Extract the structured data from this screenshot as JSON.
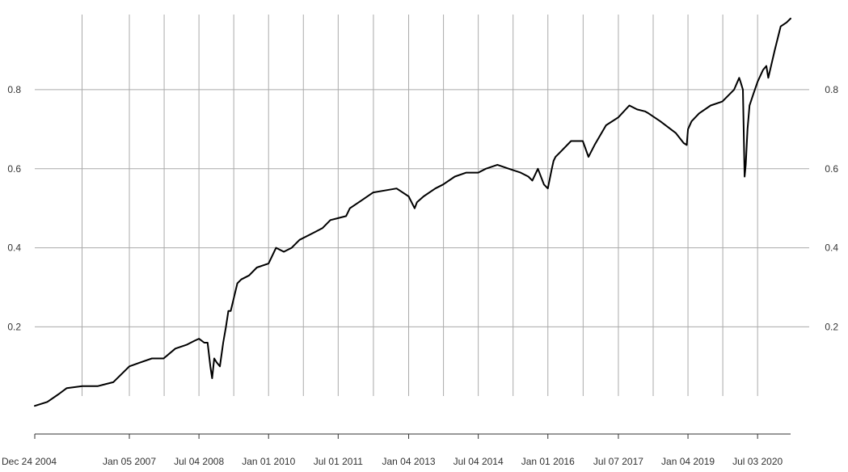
{
  "chart_data": {
    "type": "line",
    "title": "",
    "xlabel": "",
    "ylabel": "",
    "x_start": "2004-12-24",
    "x_end": "2021-03-19",
    "xticks": [
      {
        "date": "2004-12-24",
        "label": "Dec 24 2004"
      },
      {
        "date": "2007-01-05",
        "label": "Jan 05 2007"
      },
      {
        "date": "2008-07-04",
        "label": "Jul 04 2008"
      },
      {
        "date": "2010-01-01",
        "label": "Jan 01 2010"
      },
      {
        "date": "2011-07-01",
        "label": "Jul 01 2011"
      },
      {
        "date": "2013-01-04",
        "label": "Jan 04 2013"
      },
      {
        "date": "2014-07-04",
        "label": "Jul 04 2014"
      },
      {
        "date": "2016-01-01",
        "label": "Jan 01 2016"
      },
      {
        "date": "2017-07-07",
        "label": "Jul 07 2017"
      },
      {
        "date": "2019-01-04",
        "label": "Jan 04 2019"
      },
      {
        "date": "2020-07-03",
        "label": "Jul 03 2020"
      }
    ],
    "yticks": [
      0.2,
      0.4,
      0.6,
      0.8
    ],
    "ytick_labels": [
      "0.2",
      "0.4",
      "0.6",
      "0.8"
    ],
    "ylim": [
      -0.02,
      0.99
    ],
    "grid": true,
    "legend": "none",
    "colors": {
      "line": "#000000",
      "grid": "#aaaaaa"
    },
    "series": [
      {
        "x": [
          "2004-12-24",
          "2005-04-01",
          "2005-07-01",
          "2005-09-01",
          "2006-01-01",
          "2006-05-01",
          "2006-09-01",
          "2007-01-05",
          "2007-04-01",
          "2007-07-01",
          "2007-10-01",
          "2008-01-01",
          "2008-04-01",
          "2008-06-01",
          "2008-07-04",
          "2008-08-15",
          "2008-09-10",
          "2008-10-01",
          "2008-10-15",
          "2008-11-01",
          "2008-11-20",
          "2008-12-15",
          "2009-01-10",
          "2009-02-01",
          "2009-02-20",
          "2009-03-10",
          "2009-04-01",
          "2009-05-01",
          "2009-06-01",
          "2009-08-01",
          "2009-10-01",
          "2010-01-01",
          "2010-03-01",
          "2010-05-01",
          "2010-07-01",
          "2010-09-01",
          "2010-11-01",
          "2011-01-01",
          "2011-03-01",
          "2011-05-01",
          "2011-07-01",
          "2011-09-01",
          "2011-10-01",
          "2012-01-01",
          "2012-04-01",
          "2012-07-01",
          "2012-10-01",
          "2013-01-04",
          "2013-02-20",
          "2013-03-10",
          "2013-05-01",
          "2013-08-01",
          "2013-10-01",
          "2014-01-01",
          "2014-04-01",
          "2014-07-04",
          "2014-09-01",
          "2014-12-01",
          "2015-03-01",
          "2015-06-01",
          "2015-08-01",
          "2015-09-01",
          "2015-10-15",
          "2015-12-01",
          "2016-01-01",
          "2016-02-01",
          "2016-02-15",
          "2016-03-01",
          "2016-04-01",
          "2016-07-01",
          "2016-10-01",
          "2016-11-15",
          "2017-01-01",
          "2017-04-01",
          "2017-07-07",
          "2017-10-01",
          "2017-12-01",
          "2018-02-01",
          "2018-03-01",
          "2018-06-01",
          "2018-10-01",
          "2018-12-01",
          "2018-12-25",
          "2019-01-04",
          "2019-02-01",
          "2019-04-01",
          "2019-07-01",
          "2019-10-01",
          "2020-01-01",
          "2020-02-10",
          "2020-02-20",
          "2020-03-10",
          "2020-03-23",
          "2020-04-01",
          "2020-04-15",
          "2020-05-01",
          "2020-06-01",
          "2020-07-03",
          "2020-08-15",
          "2020-09-10",
          "2020-09-25",
          "2020-11-15",
          "2020-12-31",
          "2021-02-15",
          "2021-03-19"
        ],
        "y": [
          0.0,
          0.01,
          0.03,
          0.045,
          0.05,
          0.05,
          0.06,
          0.1,
          0.11,
          0.12,
          0.12,
          0.145,
          0.155,
          0.165,
          0.17,
          0.16,
          0.16,
          0.1,
          0.07,
          0.12,
          0.11,
          0.1,
          0.16,
          0.2,
          0.24,
          0.24,
          0.27,
          0.31,
          0.32,
          0.33,
          0.35,
          0.36,
          0.4,
          0.39,
          0.4,
          0.42,
          0.43,
          0.44,
          0.45,
          0.47,
          0.475,
          0.48,
          0.5,
          0.52,
          0.54,
          0.545,
          0.55,
          0.53,
          0.5,
          0.515,
          0.53,
          0.55,
          0.56,
          0.58,
          0.59,
          0.59,
          0.6,
          0.61,
          0.6,
          0.59,
          0.58,
          0.57,
          0.6,
          0.56,
          0.55,
          0.6,
          0.62,
          0.63,
          0.64,
          0.67,
          0.67,
          0.63,
          0.66,
          0.71,
          0.73,
          0.76,
          0.75,
          0.745,
          0.74,
          0.72,
          0.69,
          0.665,
          0.66,
          0.7,
          0.72,
          0.74,
          0.76,
          0.77,
          0.8,
          0.83,
          0.82,
          0.8,
          0.58,
          0.61,
          0.7,
          0.76,
          0.79,
          0.82,
          0.85,
          0.86,
          0.83,
          0.9,
          0.96,
          0.97,
          0.98
        ]
      }
    ]
  }
}
